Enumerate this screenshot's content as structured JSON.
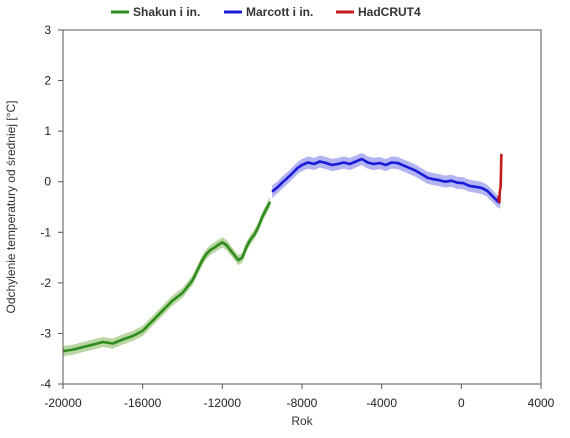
{
  "chart_data": {
    "type": "line",
    "xlabel": "Rok",
    "ylabel": "Odchylenie temperatury od średniej [°C]",
    "xlim": [
      -20000,
      4000
    ],
    "ylim": [
      -4,
      3
    ],
    "xticks": [
      "-20000",
      "-16000",
      "-12000",
      "-8000",
      "-4000",
      "0",
      "4000"
    ],
    "yticks": [
      "3",
      "2",
      "1",
      "0",
      "-1",
      "-2",
      "-3",
      "-4"
    ],
    "grid": false,
    "legend_position": "top",
    "series": [
      {
        "name": "Shakun i in.",
        "color": "#2e8b1f",
        "band_color": "#b9d7a2",
        "band": 0.1,
        "x": [
          -20000,
          -19500,
          -19000,
          -18500,
          -18000,
          -17500,
          -17000,
          -16500,
          -16000,
          -15500,
          -15000,
          -14500,
          -14000,
          -13500,
          -13000,
          -12800,
          -12600,
          -12400,
          -12200,
          -12000,
          -11800,
          -11600,
          -11400,
          -11200,
          -11000,
          -10800,
          -10600,
          -10400,
          -10200,
          -10000,
          -9800,
          -9600
        ],
        "y": [
          -3.35,
          -3.32,
          -3.27,
          -3.22,
          -3.17,
          -3.2,
          -3.12,
          -3.05,
          -2.95,
          -2.75,
          -2.55,
          -2.35,
          -2.2,
          -1.95,
          -1.55,
          -1.43,
          -1.35,
          -1.3,
          -1.25,
          -1.2,
          -1.25,
          -1.35,
          -1.45,
          -1.55,
          -1.5,
          -1.3,
          -1.15,
          -1.05,
          -0.9,
          -0.7,
          -0.55,
          -0.4
        ]
      },
      {
        "name": "Marcott i in.",
        "color": "#1a1adb",
        "band_color": "#b4b4f2",
        "band": 0.12,
        "x": [
          -9500,
          -9200,
          -9000,
          -8800,
          -8600,
          -8400,
          -8200,
          -8000,
          -7700,
          -7400,
          -7100,
          -6800,
          -6500,
          -6200,
          -5900,
          -5600,
          -5300,
          -5000,
          -4700,
          -4400,
          -4100,
          -3800,
          -3500,
          -3200,
          -2900,
          -2600,
          -2300,
          -2000,
          -1700,
          -1400,
          -1100,
          -800,
          -500,
          -200,
          100,
          400,
          700,
          1000,
          1300,
          1600,
          1800,
          1950
        ],
        "y": [
          -0.2,
          -0.1,
          -0.02,
          0.05,
          0.12,
          0.2,
          0.28,
          0.33,
          0.38,
          0.35,
          0.4,
          0.37,
          0.33,
          0.35,
          0.38,
          0.35,
          0.4,
          0.45,
          0.38,
          0.35,
          0.37,
          0.33,
          0.38,
          0.37,
          0.32,
          0.27,
          0.22,
          0.15,
          0.08,
          0.05,
          0.03,
          0.0,
          0.02,
          -0.02,
          -0.03,
          -0.08,
          -0.1,
          -0.12,
          -0.18,
          -0.3,
          -0.38,
          -0.42
        ]
      },
      {
        "name": "HadCRUT4",
        "color": "#c41a1a",
        "band_color": "#f2b4b4",
        "band": 0.05,
        "x": [
          1850,
          1870,
          1890,
          1910,
          1930,
          1950,
          1970,
          1990,
          2000,
          2012
        ],
        "y": [
          -0.35,
          -0.3,
          -0.38,
          -0.4,
          -0.2,
          -0.15,
          -0.1,
          0.2,
          0.4,
          0.55
        ]
      }
    ]
  }
}
